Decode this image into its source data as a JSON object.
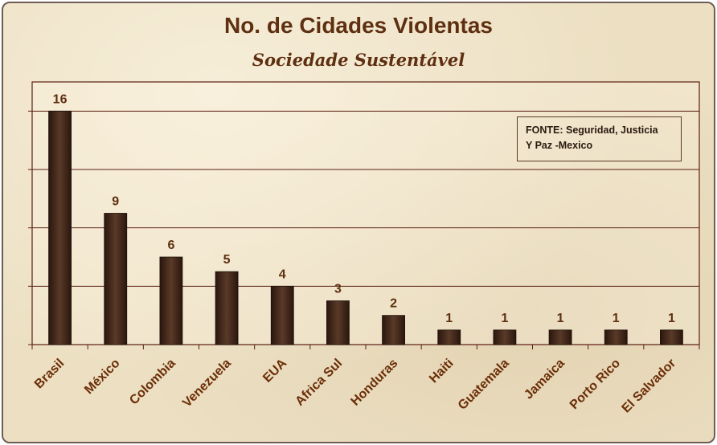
{
  "chart_data": {
    "type": "bar",
    "title": "No. de Cidades Violentas",
    "subtitle": "Sociedade Sustentável",
    "categories": [
      "Brasil",
      "México",
      "Colombia",
      "Venezuela",
      "EUA",
      "Africa Sul",
      "Honduras",
      "Haiti",
      "Guatemala",
      "Jamaica",
      "Porto Rico",
      "El Salvador"
    ],
    "values": [
      16,
      9,
      6,
      5,
      4,
      3,
      2,
      1,
      1,
      1,
      1,
      1
    ],
    "ylim": [
      0,
      18
    ],
    "grid": true,
    "bar_color": "#3a2216",
    "grid_color": "#5a1e12",
    "annotation": {
      "line1": "FONTE:  Seguridad, Justicia",
      "line2": "Y Paz -Mexico"
    }
  }
}
